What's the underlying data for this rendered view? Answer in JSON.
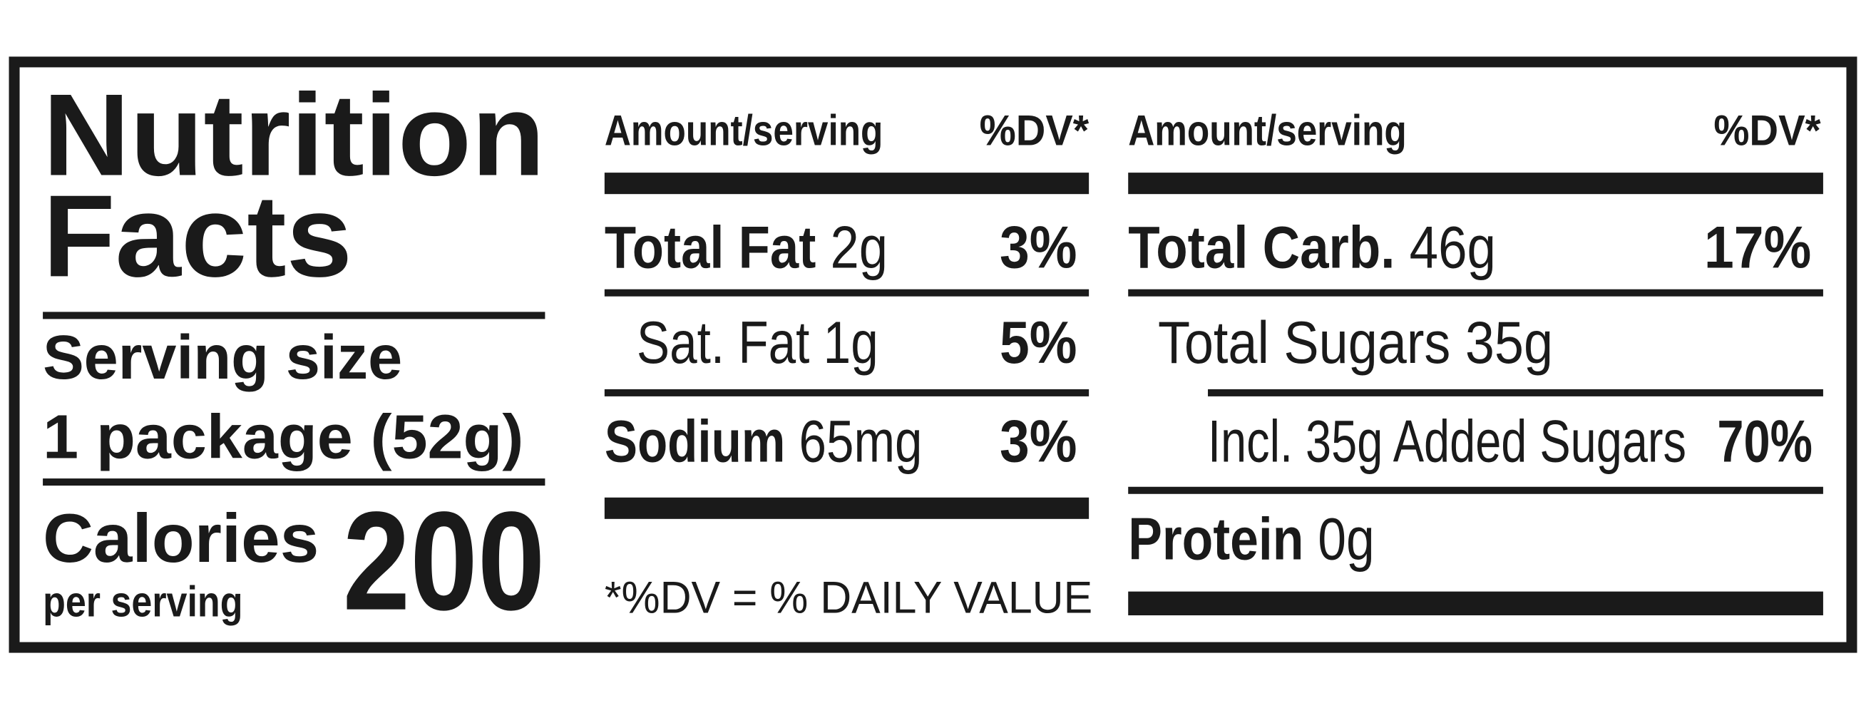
{
  "title": [
    "Nutrition",
    "Facts"
  ],
  "serving": {
    "label": "Serving size",
    "size": "1 package (52g)"
  },
  "calories": {
    "label": "Calories",
    "sublabel": "per serving",
    "value": 200
  },
  "columns": [
    {
      "header": {
        "amount": "Amount/serving",
        "dv": "%DV*"
      },
      "rows": [
        {
          "nutrient": "Total Fat",
          "amount": "2g",
          "dv": "3%"
        },
        {
          "nutrient": "Sat. Fat",
          "amount": "1g",
          "dv": "5%"
        },
        {
          "nutrient": "Sodium",
          "amount": "65mg",
          "dv": "3%"
        }
      ]
    },
    {
      "header": {
        "amount": "Amount/serving",
        "dv": "%DV*"
      },
      "rows": [
        {
          "nutrient": "Total Carb.",
          "amount": "46g",
          "dv": "17%"
        },
        {
          "nutrient": "Total Sugars",
          "amount": "35g"
        },
        {
          "nutrient": "Incl. 35g Added Sugars",
          "dv": "70%"
        },
        {
          "nutrient": "Protein",
          "amount": "0g"
        }
      ]
    }
  ],
  "footnote": "*%DV = % DAILY VALUE"
}
